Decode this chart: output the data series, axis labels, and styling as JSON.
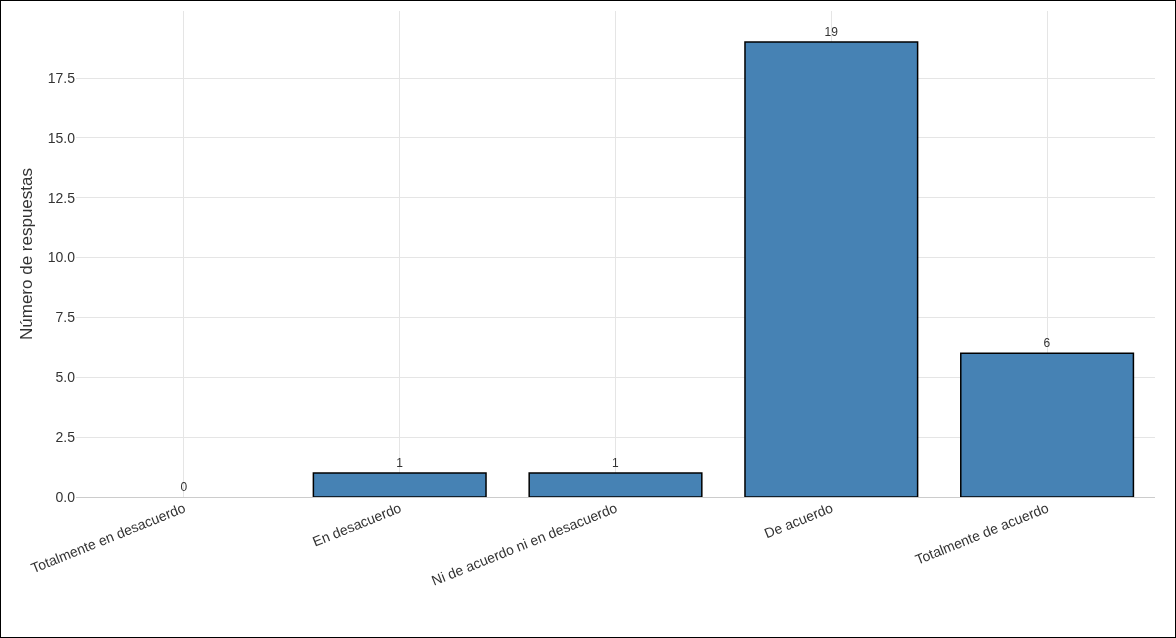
{
  "chart_data": {
    "type": "bar",
    "categories": [
      "Totalmente en desacuerdo",
      "En desacuerdo",
      "Ni de acuerdo ni en desacuerdo",
      "De acuerdo",
      "Totalmente de acuerdo"
    ],
    "values": [
      0,
      1,
      1,
      19,
      6
    ],
    "color": "#4682b4",
    "ylabel": "Número de respuestas",
    "ylim": [
      0,
      20.3
    ],
    "yticks": [
      {
        "value": 0,
        "label": "0.0"
      },
      {
        "value": 2.5,
        "label": "2.5"
      },
      {
        "value": 5,
        "label": "5.0"
      },
      {
        "value": 7.5,
        "label": "7.5"
      },
      {
        "value": 10,
        "label": "10.0"
      },
      {
        "value": 12.5,
        "label": "12.5"
      },
      {
        "value": 15,
        "label": "15.0"
      },
      {
        "value": 17.5,
        "label": "17.5"
      }
    ],
    "data_labels": true,
    "grid": true
  }
}
